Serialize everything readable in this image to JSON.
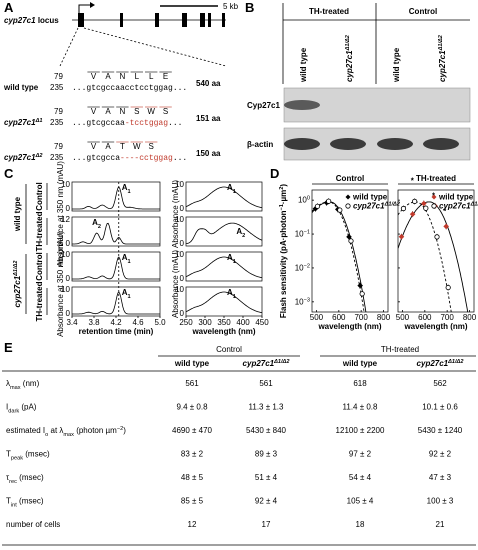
{
  "panel_a": {
    "label": "A",
    "locus": [
      {
        "i": "cyp27c1"
      },
      {
        "t": " locus"
      }
    ],
    "scale_bar": "5 kb",
    "mutation_color": "#c0392b",
    "rows": [
      {
        "name": [
          {
            "t": "wild type"
          }
        ],
        "start": "79",
        "start_nt": "235",
        "aa": [
          "V",
          "A",
          "N",
          "L",
          "L",
          "E"
        ],
        "seq": "...gtcgccaacctcctggag...",
        "length": "540 aa"
      },
      {
        "name": [
          {
            "i": "cyp27c1"
          },
          {
            "isup": "Δ1"
          }
        ],
        "start": "79",
        "start_nt": "235",
        "aa": [
          "V",
          "A",
          "N"
        ],
        "aa_changed": [
          "S",
          "W",
          "S"
        ],
        "seq": "...gtcgccaa",
        "seq_changed": "-tcctggag",
        "seq_end": "...",
        "length": "151 aa"
      },
      {
        "name": [
          {
            "i": "cyp27c1"
          },
          {
            "isup": "Δ2"
          }
        ],
        "start": "79",
        "start_nt": "235",
        "aa": [
          "V",
          "A"
        ],
        "aa_changed": [
          "T",
          "W",
          "S"
        ],
        "seq": "...gtcgcca",
        "seq_changed": "----cctggag",
        "seq_end": "...",
        "length": "150 aa"
      }
    ]
  },
  "panel_b": {
    "label": "B",
    "groups": [
      "TH-treated",
      "Control"
    ],
    "lanes": [
      [
        {
          "t": "wild type"
        }
      ],
      [
        {
          "i": "cyp27c1"
        },
        {
          "isup": "Δ1/Δ2"
        }
      ],
      [
        {
          "t": "wild type"
        }
      ],
      [
        {
          "i": "cyp27c1"
        },
        {
          "isup": "Δ1/Δ2"
        }
      ]
    ],
    "blots": [
      "Cyp27c1",
      "β-actin"
    ]
  },
  "panel_c": {
    "label": "C",
    "groups": [
      [
        {
          "t": "wild type"
        }
      ],
      [
        {
          "i": "cyp27c1"
        },
        {
          "isup": "Δ1/Δ2"
        }
      ]
    ],
    "conditions": [
      "Control",
      "TH-treated",
      "Control",
      "TH-treated"
    ],
    "y_label_left": "Absorbance at 350 nm (mAU)",
    "y_label_right": "Absorbance (mAU)",
    "x_label_left": "retention time (min)",
    "x_label_right": "wavelength (nm)",
    "yticks_left": [
      [
        "10",
        "0"
      ],
      [
        "12",
        "0"
      ],
      [
        "10",
        "0"
      ],
      [
        "10",
        "0"
      ]
    ],
    "yticks_right": [
      [
        "10",
        "0"
      ],
      [
        "10",
        "0"
      ],
      [
        "10",
        "0"
      ],
      [
        "10",
        "0"
      ]
    ],
    "xticks_left": [
      "3.4",
      "3.8",
      "4.2",
      "4.6",
      "5.0"
    ],
    "xticks_right": [
      "250",
      "300",
      "350",
      "400",
      "450"
    ],
    "peaks": [
      {
        "text": [
          {
            "t": "A"
          },
          {
            "sub": "1"
          }
        ],
        "color": "#000000"
      },
      {
        "text": [
          {
            "t": "A"
          },
          {
            "sub": "2"
          }
        ],
        "color": "#c0392b"
      },
      {
        "text": [
          {
            "t": "A"
          },
          {
            "sub": "1"
          }
        ],
        "color": "#000000"
      },
      {
        "text": [
          {
            "t": "A"
          },
          {
            "sub": "1"
          }
        ],
        "color": "#000000"
      }
    ]
  },
  "panel_d": {
    "label": "D",
    "titles": [
      "Control",
      "TH-treated"
    ],
    "wt_colors": [
      "#000000",
      "#c0392b"
    ],
    "legend": [
      [
        {
          "t": "wild type"
        }
      ],
      [
        {
          "i": "cyp27c1"
        },
        {
          "isup": "Δ1/Δ2"
        }
      ]
    ],
    "y_label": [
      {
        "t": "Flash sensitivity (pA·photon"
      },
      {
        "sup": "−1"
      },
      {
        "t": "·µm"
      },
      {
        "sup": "2"
      },
      {
        "t": ")"
      }
    ],
    "x_label": "wavelength (nm)",
    "xticks": [
      "500",
      "600",
      "700",
      "800"
    ],
    "yticks": [
      [
        {
          "t": "10"
        },
        {
          "sup": "0"
        }
      ],
      [
        {
          "t": "10"
        },
        {
          "sup": "−1"
        }
      ],
      [
        {
          "t": "10"
        },
        {
          "sup": "−2"
        }
      ],
      [
        {
          "t": "10"
        },
        {
          "sup": "−3"
        }
      ]
    ],
    "star": "*"
  },
  "panel_e": {
    "label": "E",
    "groups": [
      "Control",
      "TH-treated"
    ],
    "columns": [
      [
        {
          "t": "wild type"
        }
      ],
      [
        {
          "i": "cyp27c1"
        },
        {
          "isup": "Δ1/Δ2"
        }
      ],
      [
        {
          "t": "wild type"
        }
      ],
      [
        {
          "i": "cyp27c1"
        },
        {
          "isup": "Δ1/Δ2"
        }
      ]
    ],
    "rows": [
      {
        "label": [
          {
            "t": "λ"
          },
          {
            "sub": "max"
          },
          {
            "t": " (nm)"
          }
        ],
        "values": [
          "561",
          "561",
          "618",
          "562"
        ]
      },
      {
        "label": [
          {
            "t": "I"
          },
          {
            "sub": "dark"
          },
          {
            "t": " (pA)"
          }
        ],
        "values": [
          "9.4 ± 0.8",
          "11.3 ± 1.3",
          "11.4 ± 0.8",
          "10.1 ± 0.6"
        ]
      },
      {
        "label": [
          {
            "t": "estimated I"
          },
          {
            "sub": "o"
          },
          {
            "t": " at λ"
          },
          {
            "sub": "max"
          },
          {
            "t": " (photon µm"
          },
          {
            "sup": "−2"
          },
          {
            "t": ")"
          }
        ],
        "values": [
          "4690 ± 470",
          "5430 ± 840",
          "12100 ± 2200",
          "5430 ± 1240"
        ]
      },
      {
        "label": [
          {
            "t": "T"
          },
          {
            "sub": "peak"
          },
          {
            "t": " (msec)"
          }
        ],
        "values": [
          "83 ± 2",
          "89 ± 3",
          "97 ± 2",
          "92 ± 2"
        ]
      },
      {
        "label": [
          {
            "t": "τ"
          },
          {
            "sub": "rec"
          },
          {
            "t": " (msec)"
          }
        ],
        "values": [
          "48 ± 5",
          "51 ± 4",
          "54 ± 4",
          "47 ± 3"
        ]
      },
      {
        "label": [
          {
            "t": "T"
          },
          {
            "sub": "int"
          },
          {
            "t": " (msec)"
          }
        ],
        "values": [
          "85 ± 5",
          "92 ± 4",
          "105 ± 4",
          "100 ± 3"
        ]
      },
      {
        "label": [
          {
            "t": "number of cells"
          }
        ],
        "values": [
          "12",
          "17",
          "18",
          "21"
        ]
      }
    ]
  }
}
